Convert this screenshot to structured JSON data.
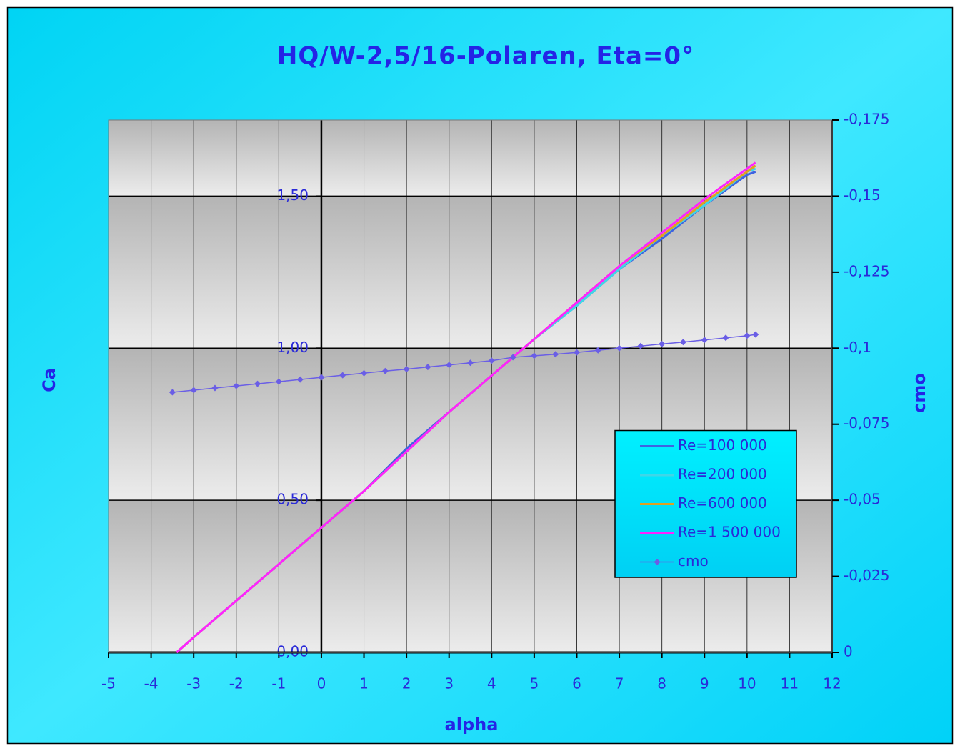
{
  "chart_data": {
    "type": "line",
    "title": "HQ/W-2,5/16-Polaren, Eta=0°",
    "xlabel": "alpha",
    "ylabel": "Ca",
    "y2label": "cmo",
    "xlim": [
      -5,
      12
    ],
    "xticks": [
      -5,
      -4,
      -3,
      -2,
      -1,
      0,
      1,
      2,
      3,
      4,
      5,
      6,
      7,
      8,
      9,
      10,
      11,
      12
    ],
    "ylim": [
      0,
      1.75
    ],
    "yticks": [
      {
        "value": 0,
        "label": "0,00"
      },
      {
        "value": 0.5,
        "label": "0,50"
      },
      {
        "value": 1,
        "label": "1,00"
      },
      {
        "value": 1.5,
        "label": "1,50"
      }
    ],
    "y2lim": [
      0,
      -0.175
    ],
    "y2ticks": [
      0,
      {
        "value": -0.025,
        "label": "-0,025"
      },
      {
        "value": -0.05,
        "label": "-0,05"
      },
      {
        "value": -0.075,
        "label": "-0,075"
      },
      {
        "value": -0.1,
        "label": "-0,1"
      },
      {
        "value": -0.125,
        "label": "-0,125"
      },
      {
        "value": -0.15,
        "label": "-0,15"
      },
      {
        "value": -0.175,
        "label": "-0,175"
      }
    ],
    "grid": true,
    "legend": "lower-right",
    "series": [
      {
        "name": "Re=100 000",
        "color": "#3f63e0",
        "x": [
          -3.4,
          -3,
          -2,
          -1,
          0,
          1,
          2,
          3,
          4,
          5,
          6,
          7,
          8,
          9,
          10,
          10.2
        ],
        "values": [
          0,
          0.05,
          0.17,
          0.29,
          0.41,
          0.53,
          0.67,
          0.79,
          0.91,
          1.03,
          1.14,
          1.26,
          1.36,
          1.47,
          1.57,
          1.58
        ]
      },
      {
        "name": "Re=200 000",
        "color": "#3fd6e8",
        "x": [
          -3.4,
          -3,
          -2,
          -1,
          0,
          1,
          2,
          3,
          4,
          5,
          6,
          7,
          8,
          9,
          10,
          10.2
        ],
        "values": [
          0,
          0.05,
          0.17,
          0.29,
          0.41,
          0.53,
          0.66,
          0.79,
          0.91,
          1.03,
          1.14,
          1.26,
          1.37,
          1.47,
          1.58,
          1.59
        ]
      },
      {
        "name": "Re=600 000",
        "color": "#e0a020",
        "x": [
          -3.4,
          -3,
          -2,
          -1,
          0,
          1,
          2,
          3,
          4,
          5,
          6,
          7,
          8,
          9,
          10,
          10.2
        ],
        "values": [
          0,
          0.05,
          0.17,
          0.29,
          0.41,
          0.53,
          0.66,
          0.79,
          0.91,
          1.03,
          1.15,
          1.27,
          1.37,
          1.48,
          1.58,
          1.6
        ]
      },
      {
        "name": "Re=1 500 000",
        "color": "#ff22ff",
        "x": [
          -3.4,
          -3,
          -2,
          -1,
          0,
          1,
          2,
          3,
          4,
          5,
          6,
          7,
          8,
          9,
          10,
          10.2
        ],
        "values": [
          0,
          0.05,
          0.17,
          0.29,
          0.41,
          0.53,
          0.66,
          0.79,
          0.91,
          1.03,
          1.15,
          1.27,
          1.38,
          1.49,
          1.59,
          1.61
        ]
      },
      {
        "name": "cmo",
        "color": "#6a5ee6",
        "axis": "y2",
        "marker": "diamond",
        "x": [
          -3.5,
          -3,
          -2.5,
          -2,
          -1.5,
          -1,
          -0.5,
          0,
          0.5,
          1,
          1.5,
          2,
          2.5,
          3,
          3.5,
          4,
          4.5,
          5,
          5.5,
          6,
          6.5,
          7,
          7.5,
          8,
          8.5,
          9,
          9.5,
          10,
          10.2
        ],
        "values": [
          -0.0855,
          -0.0862,
          -0.0869,
          -0.0876,
          -0.0883,
          -0.089,
          -0.0897,
          -0.0904,
          -0.0911,
          -0.0918,
          -0.0925,
          -0.0931,
          -0.0938,
          -0.0945,
          -0.0952,
          -0.0959,
          -0.097,
          -0.0975,
          -0.098,
          -0.0986,
          -0.0993,
          -0.1,
          -0.1007,
          -0.1014,
          -0.102,
          -0.1027,
          -0.1034,
          -0.1041,
          -0.1045
        ]
      }
    ]
  }
}
